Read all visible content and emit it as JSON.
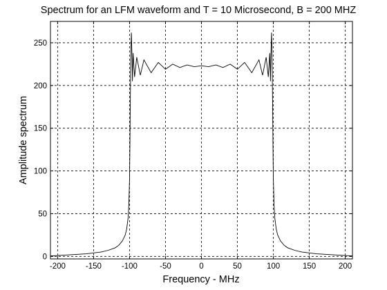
{
  "chart_data": {
    "type": "line",
    "title": "Spectrum for an LFM waveform and T = 10 Microsecond, B = 200 MHZ",
    "xlabel": "Frequency - MHz",
    "ylabel": "Amplitude spectrum",
    "xlim": [
      -210,
      210
    ],
    "ylim": [
      -3,
      275
    ],
    "grid": true,
    "xticks": [
      -200,
      -150,
      -100,
      -50,
      0,
      50,
      100,
      150,
      200
    ],
    "yticks": [
      0,
      50,
      100,
      150,
      200,
      250
    ],
    "series": [
      {
        "name": "",
        "color": "#000000",
        "x": [
          -210,
          -200,
          -180,
          -160,
          -140,
          -130,
          -120,
          -115,
          -110,
          -106,
          -104,
          -102,
          -101,
          -100,
          -99.5,
          -99,
          -98.5,
          -98,
          -97.5,
          -97,
          -96.5,
          -96,
          -95,
          -93,
          -90,
          -85,
          -80,
          -70,
          -60,
          -50,
          -40,
          -30,
          -20,
          -10,
          0,
          10,
          20,
          30,
          40,
          50,
          60,
          70,
          80,
          85,
          90,
          93,
          95,
          96,
          96.5,
          97,
          97.5,
          98,
          98.5,
          99,
          99.5,
          100,
          101,
          102,
          104,
          106,
          110,
          115,
          120,
          130,
          140,
          160,
          180,
          200,
          210
        ],
        "y": [
          0.5,
          1,
          2,
          3,
          5,
          7,
          10,
          13,
          18,
          25,
          32,
          45,
          60,
          90,
          130,
          175,
          215,
          245,
          262,
          248,
          232,
          205,
          238,
          210,
          233,
          212,
          230,
          215,
          227,
          219,
          225,
          221,
          224,
          222,
          223,
          222,
          224,
          221,
          225,
          219,
          227,
          215,
          230,
          212,
          233,
          210,
          238,
          205,
          232,
          248,
          262,
          245,
          215,
          175,
          130,
          90,
          60,
          45,
          32,
          25,
          18,
          13,
          10,
          7,
          5,
          3,
          2,
          1,
          0.5
        ]
      }
    ]
  }
}
